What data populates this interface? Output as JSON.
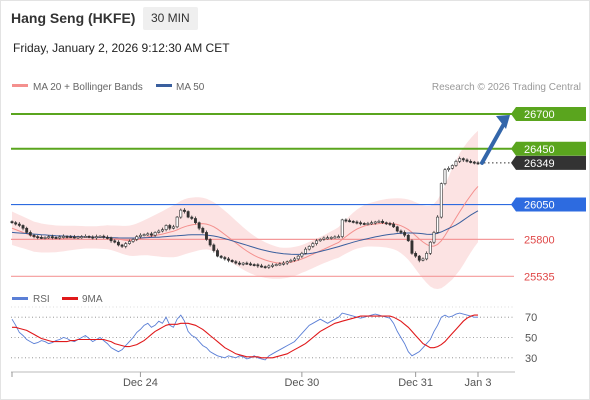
{
  "header": {
    "title": "Hang Seng (HKFE)",
    "timeframe": "30 MIN",
    "datetime": "Friday, January 2, 2026 9:12:30 AM CET"
  },
  "legend": {
    "items": [
      {
        "label": "MA 20 + Bollinger Bands",
        "color": "#f4908e"
      },
      {
        "label": "MA 50",
        "color": "#3a5f9e"
      }
    ],
    "credit": "Research © 2026 Trading Central"
  },
  "rsi_legend": {
    "items": [
      {
        "label": "RSI",
        "color": "#5b7fd6"
      },
      {
        "label": "9MA",
        "color": "#e0191b"
      }
    ]
  },
  "colors": {
    "resistance": "#5aa51e",
    "pivot": "#2d6be0",
    "support": "#f4999a",
    "current": "#333333",
    "bull_candle": "#ffffff",
    "bear_candle": "#333333",
    "bands_fill": "#fbd9d9",
    "ma20": "#f4908e",
    "ma50": "#3a5f9e",
    "arrow": "#3366aa"
  },
  "chart_data": [
    {
      "type": "candlestick",
      "name": "price",
      "y_range": [
        25480,
        26800
      ],
      "x_labels": [
        "Dec 24",
        "Dec 30",
        "Dec 31",
        "Jan 3"
      ],
      "levels": [
        {
          "value": 26700,
          "label": "26700",
          "kind": "resistance"
        },
        {
          "value": 26450,
          "label": "26450",
          "kind": "resistance"
        },
        {
          "value": 26349,
          "label": "26349",
          "kind": "current"
        },
        {
          "value": 26050,
          "label": "26050",
          "kind": "pivot"
        },
        {
          "value": 25800,
          "label": "25800",
          "kind": "support"
        },
        {
          "value": 25535,
          "label": "25535",
          "kind": "support"
        }
      ],
      "close": [
        25920,
        25910,
        25900,
        25880,
        25850,
        25830,
        25820,
        25815,
        25810,
        25815,
        25820,
        25815,
        25810,
        25818,
        25822,
        25820,
        25818,
        25815,
        25818,
        25820,
        25822,
        25818,
        25812,
        25820,
        25823,
        25815,
        25812,
        25790,
        25780,
        25760,
        25750,
        25770,
        25785,
        25800,
        25820,
        25830,
        25835,
        25840,
        25830,
        25850,
        25860,
        25870,
        25900,
        25880,
        25890,
        25960,
        26010,
        26000,
        25960,
        25950,
        25920,
        25880,
        25850,
        25800,
        25760,
        25720,
        25680,
        25670,
        25660,
        25650,
        25640,
        25630,
        25625,
        25630,
        25625,
        25620,
        25618,
        25610,
        25605,
        25600,
        25610,
        25615,
        25620,
        25625,
        25630,
        25640,
        25650,
        25660,
        25680,
        25700,
        25730,
        25750,
        25770,
        25790,
        25800,
        25810,
        25812,
        25815,
        25818,
        25820,
        25940,
        25935,
        25930,
        25925,
        25920,
        25915,
        25910,
        25915,
        25920,
        25925,
        25930,
        25920,
        25915,
        25910,
        25890,
        25860,
        25850,
        25830,
        25790,
        25700,
        25680,
        25650,
        25660,
        25700,
        25780,
        25850,
        25960,
        26200,
        26300,
        26310,
        26330,
        26360,
        26380,
        26370,
        26360,
        26355,
        26350,
        26349
      ],
      "ma20": [
        25880,
        25870,
        25860,
        25850,
        25840,
        25830,
        25820,
        25815,
        25810,
        25808,
        25806,
        25805,
        25804,
        25805,
        25806,
        25808,
        25810,
        25812,
        25813,
        25814,
        25815,
        25815,
        25815,
        25815,
        25815,
        25815,
        25815,
        25812,
        25808,
        25803,
        25797,
        25793,
        25791,
        25793,
        25798,
        25805,
        25812,
        25818,
        25823,
        25828,
        25833,
        25838,
        25845,
        25852,
        25858,
        25868,
        25880,
        25890,
        25898,
        25904,
        25909,
        25912,
        25913,
        25910,
        25902,
        25890,
        25874,
        25855,
        25835,
        25815,
        25795,
        25775,
        25755,
        25735,
        25717,
        25700,
        25685,
        25672,
        25662,
        25652,
        25644,
        25638,
        25633,
        25630,
        25630,
        25632,
        25636,
        25642,
        25650,
        25660,
        25670,
        25682,
        25694,
        25706,
        25718,
        25730,
        25742,
        25754,
        25766,
        25778,
        25800,
        25820,
        25840,
        25858,
        25874,
        25886,
        25896,
        25903,
        25907,
        25910,
        25913,
        25915,
        25916,
        25915,
        25912,
        25907,
        25898,
        25886,
        25870,
        25850,
        25827,
        25803,
        25781,
        25764,
        25752,
        25752,
        25764,
        25790,
        25828,
        25870,
        25912,
        25955,
        25998,
        26038,
        26078,
        26115,
        26150,
        26180
      ],
      "ma50": [
        25850,
        25848,
        25846,
        25844,
        25842,
        25840,
        25838,
        25836,
        25834,
        25832,
        25830,
        25828,
        25826,
        25825,
        25824,
        25823,
        25822,
        25821,
        25820,
        25819,
        25818,
        25818,
        25817,
        25816,
        25815,
        25815,
        25814,
        25813,
        25812,
        25811,
        25810,
        25810,
        25810,
        25810,
        25810,
        25811,
        25812,
        25813,
        25814,
        25815,
        25816,
        25818,
        25820,
        25822,
        25824,
        25826,
        25828,
        25830,
        25832,
        25833,
        25834,
        25834,
        25833,
        25831,
        25828,
        25824,
        25819,
        25813,
        25806,
        25798,
        25790,
        25782,
        25774,
        25766,
        25758,
        25750,
        25742,
        25734,
        25727,
        25720,
        25714,
        25709,
        25704,
        25700,
        25697,
        25695,
        25693,
        25692,
        25692,
        25693,
        25695,
        25698,
        25702,
        25707,
        25713,
        25720,
        25727,
        25734,
        25741,
        25748,
        25756,
        25764,
        25772,
        25780,
        25787,
        25794,
        25800,
        25806,
        25812,
        25818,
        25823,
        25828,
        25832,
        25836,
        25839,
        25842,
        25844,
        25845,
        25846,
        25846,
        25845,
        25843,
        25840,
        25837,
        25836,
        25838,
        25844,
        25854,
        25866,
        25878,
        25890,
        25904,
        25920,
        25938,
        25956,
        25974,
        25990,
        26005
      ],
      "bb_width": [
        120,
        118,
        116,
        114,
        112,
        110,
        108,
        106,
        104,
        102,
        100,
        98,
        96,
        94,
        92,
        90,
        88,
        86,
        84,
        82,
        80,
        80,
        80,
        80,
        82,
        84,
        86,
        88,
        92,
        96,
        100,
        104,
        108,
        112,
        116,
        120,
        126,
        132,
        140,
        148,
        156,
        164,
        172,
        180,
        186,
        192,
        196,
        198,
        198,
        196,
        194,
        190,
        186,
        182,
        178,
        176,
        174,
        172,
        170,
        168,
        164,
        160,
        156,
        152,
        148,
        144,
        140,
        136,
        132,
        128,
        124,
        120,
        116,
        112,
        110,
        108,
        106,
        104,
        102,
        100,
        100,
        100,
        100,
        100,
        100,
        100,
        102,
        104,
        106,
        110,
        116,
        122,
        128,
        134,
        140,
        146,
        150,
        154,
        158,
        162,
        166,
        170,
        174,
        178,
        182,
        188,
        196,
        206,
        216,
        228,
        240,
        252,
        264,
        276,
        290,
        304,
        320,
        340,
        360,
        380,
        400,
        410,
        420,
        420,
        415,
        410,
        405,
        400
      ]
    },
    {
      "type": "line",
      "name": "rsi",
      "y_range": [
        20,
        80
      ],
      "y_ticks": [
        30,
        50,
        70
      ],
      "series": [
        {
          "name": "RSI",
          "values": [
            68,
            62,
            55,
            52,
            48,
            46,
            44,
            45,
            47,
            46,
            44,
            45,
            47,
            48,
            50,
            49,
            47,
            46,
            48,
            50,
            52,
            49,
            46,
            48,
            50,
            47,
            44,
            40,
            38,
            36,
            38,
            42,
            46,
            50,
            55,
            58,
            62,
            64,
            60,
            62,
            66,
            64,
            70,
            62,
            60,
            68,
            72,
            66,
            56,
            52,
            50,
            46,
            42,
            40,
            36,
            34,
            32,
            31,
            30,
            32,
            31,
            30,
            32,
            31,
            29,
            30,
            32,
            30,
            29,
            28,
            32,
            34,
            36,
            38,
            40,
            42,
            44,
            46,
            50,
            54,
            58,
            62,
            64,
            66,
            68,
            66,
            64,
            66,
            68,
            70,
            74,
            73,
            72,
            71,
            70,
            69,
            70,
            71,
            72,
            73,
            72,
            71,
            70,
            69,
            64,
            56,
            50,
            44,
            36,
            32,
            34,
            36,
            40,
            44,
            48,
            56,
            62,
            70,
            72,
            70,
            71,
            73,
            74,
            73,
            72,
            71,
            70,
            70
          ]
        },
        {
          "name": "9MA",
          "values": [
            60,
            60,
            59,
            58,
            57,
            55,
            53,
            51,
            49,
            48,
            47,
            46,
            46,
            46,
            46,
            46,
            47,
            47,
            48,
            48,
            48,
            48,
            48,
            48,
            48,
            48,
            47,
            46,
            44,
            43,
            42,
            41,
            41,
            42,
            43,
            45,
            47,
            50,
            53,
            56,
            58,
            60,
            62,
            63,
            63,
            63,
            64,
            64,
            64,
            63,
            62,
            60,
            58,
            55,
            52,
            49,
            46,
            43,
            40,
            38,
            36,
            34,
            33,
            32,
            31,
            31,
            31,
            31,
            30,
            30,
            30,
            30,
            31,
            32,
            33,
            34,
            36,
            38,
            40,
            42,
            44,
            47,
            50,
            53,
            56,
            58,
            60,
            62,
            64,
            65,
            66,
            67,
            68,
            69,
            70,
            71,
            71,
            71,
            71,
            71,
            71,
            71,
            71,
            71,
            70,
            68,
            66,
            63,
            60,
            56,
            52,
            48,
            44,
            42,
            40,
            40,
            41,
            43,
            46,
            50,
            54,
            58,
            62,
            66,
            69,
            71,
            72,
            72
          ]
        }
      ]
    }
  ]
}
